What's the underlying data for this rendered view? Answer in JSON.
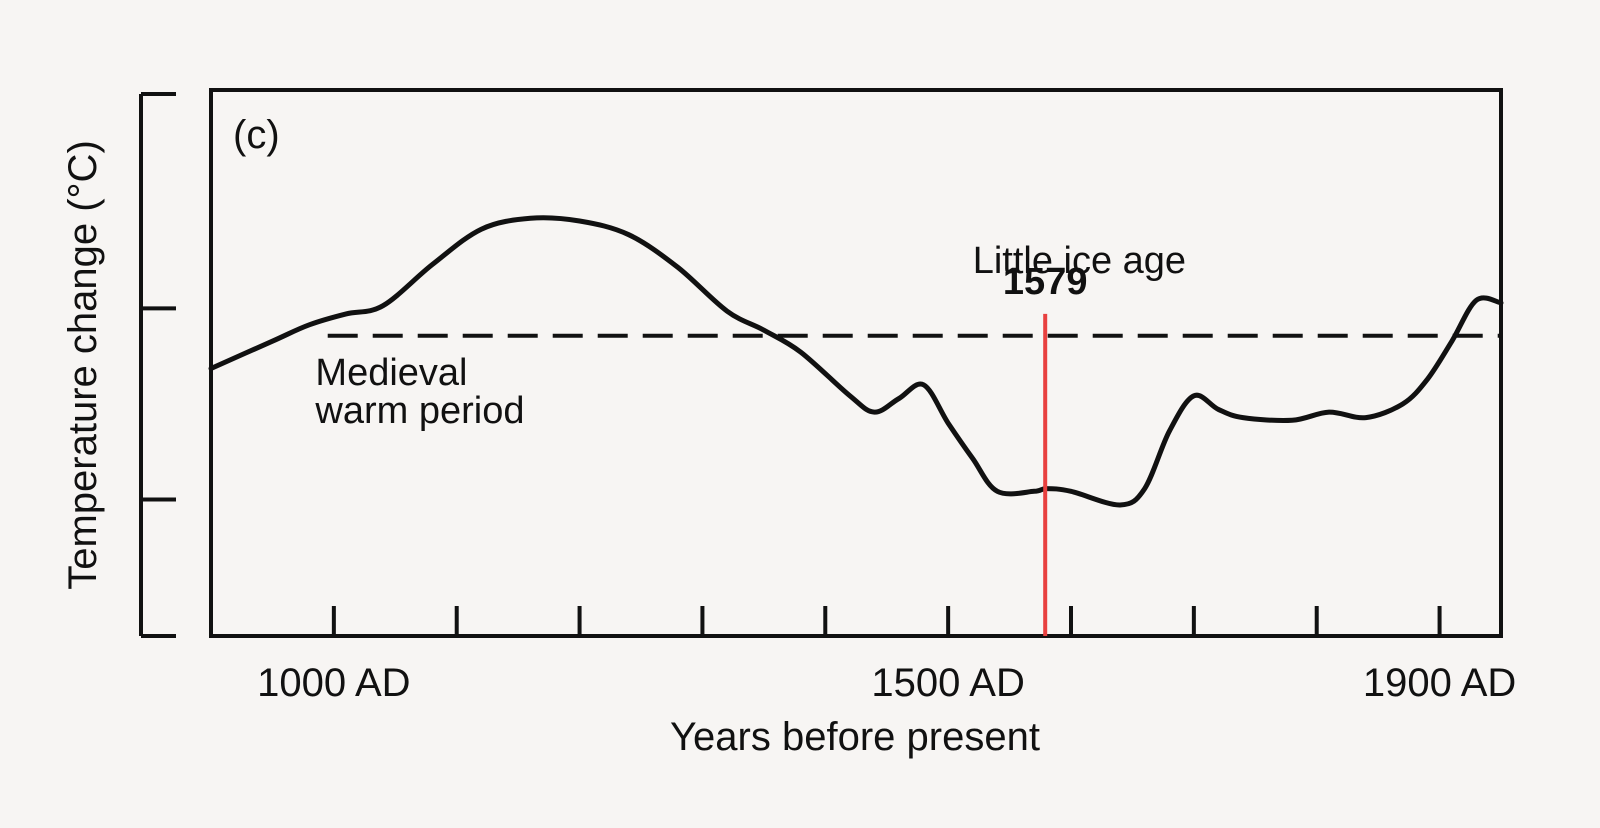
{
  "chart_data": {
    "type": "line",
    "panel_label": "(c)",
    "xlabel": "Years before present",
    "ylabel": "Temperature change (°C)",
    "xlim": [
      900,
      1950
    ],
    "ylim": [
      -1.0,
      1.0
    ],
    "x_tick_labels": [
      {
        "value": 1000,
        "label": "1000 AD"
      },
      {
        "value": 1500,
        "label": "1500 AD"
      },
      {
        "value": 1900,
        "label": "1900 AD"
      }
    ],
    "x_minor_ticks": [
      1000,
      1100,
      1200,
      1300,
      1400,
      1500,
      1600,
      1700,
      1800,
      1900
    ],
    "y_ticks": [
      -0.5,
      0.2
    ],
    "reference_level": 0.1,
    "series": [
      {
        "values_x": [
          900,
          950,
          980,
          1010,
          1040,
          1080,
          1120,
          1160,
          1200,
          1240,
          1280,
          1320,
          1350,
          1380,
          1420,
          1440,
          1460,
          1480,
          1500,
          1520,
          1540,
          1570,
          1580,
          1600,
          1640,
          1660,
          1680,
          1700,
          1720,
          1740,
          1780,
          1810,
          1840,
          1870,
          1890,
          1910,
          1930,
          1950
        ],
        "values_y": [
          -0.02,
          0.08,
          0.14,
          0.18,
          0.21,
          0.36,
          0.49,
          0.53,
          0.52,
          0.47,
          0.35,
          0.19,
          0.12,
          0.04,
          -0.12,
          -0.18,
          -0.13,
          -0.08,
          -0.22,
          -0.35,
          -0.47,
          -0.47,
          -0.46,
          -0.47,
          -0.52,
          -0.46,
          -0.25,
          -0.12,
          -0.17,
          -0.2,
          -0.21,
          -0.18,
          -0.2,
          -0.15,
          -0.06,
          0.08,
          0.23,
          0.22
        ]
      }
    ],
    "annotations": [
      {
        "text": "Medieval",
        "x": 985,
        "y": -0.08
      },
      {
        "text": "warm period",
        "x": 985,
        "y": -0.22
      },
      {
        "text": "Little ice age",
        "x": 1520,
        "y": 0.33
      }
    ],
    "marker": {
      "year": 1579,
      "label": "1579",
      "color": "#e8403f",
      "y_top": 0.18
    }
  }
}
